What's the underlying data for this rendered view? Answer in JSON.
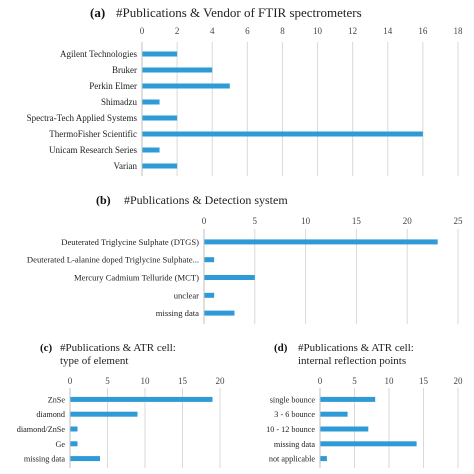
{
  "chart_data": [
    {
      "panel": "(a)",
      "type": "bar",
      "orientation": "horizontal",
      "title": "#Publications & Vendor of FTIR spectrometers",
      "categories": [
        "Agilent Technologies",
        "Bruker",
        "Perkin Elmer",
        "Shimadzu",
        "Spectra-Tech Applied Systems",
        "ThermoFisher Scientific",
        "Unicam Research Series",
        "Varian"
      ],
      "values": [
        2,
        4,
        5,
        1,
        2,
        16,
        1,
        2
      ],
      "xlim": [
        0,
        18
      ],
      "xticks": [
        0,
        2,
        4,
        6,
        8,
        10,
        12,
        14,
        16,
        18
      ],
      "xlabel": "",
      "ylabel": "",
      "grid": true,
      "bar_color": "#2E9BD6"
    },
    {
      "panel": "(b)",
      "type": "bar",
      "orientation": "horizontal",
      "title": "#Publications & Detection system",
      "categories": [
        "Deuterated Triglycine Sulphate (DTGS)",
        "Deuterated L-alanine doped Triglycine Sulphate...",
        "Mercury Cadmium Telluride (MCT)",
        "unclear",
        "missing data"
      ],
      "values": [
        23,
        1,
        5,
        1,
        3
      ],
      "xlim": [
        0,
        25
      ],
      "xticks": [
        0,
        5,
        10,
        15,
        20,
        25
      ],
      "xlabel": "",
      "ylabel": "",
      "grid": true,
      "bar_color": "#2E9BD6"
    },
    {
      "panel": "(c)",
      "type": "bar",
      "orientation": "horizontal",
      "title": "#Publications & ATR cell:\ntype of element",
      "categories": [
        "ZnSe",
        "diamond",
        "diamond/ZnSe",
        "Ge",
        "missing data"
      ],
      "values": [
        19,
        9,
        1,
        1,
        4
      ],
      "xlim": [
        0,
        20
      ],
      "xticks": [
        0,
        5,
        10,
        15,
        20
      ],
      "xlabel": "",
      "ylabel": "",
      "grid": true,
      "bar_color": "#2E9BD6"
    },
    {
      "panel": "(d)",
      "type": "bar",
      "orientation": "horizontal",
      "title": "#Publications & ATR cell:\ninternal reflection points",
      "categories": [
        "single bounce",
        "3 - 6 bounce",
        "10 - 12 bounce",
        "missing data",
        "not applicable"
      ],
      "values": [
        8,
        4,
        7,
        14,
        1
      ],
      "xlim": [
        0,
        20
      ],
      "xticks": [
        0,
        5,
        10,
        15,
        20
      ],
      "xlabel": "",
      "ylabel": "",
      "grid": true,
      "bar_color": "#2E9BD6"
    }
  ]
}
